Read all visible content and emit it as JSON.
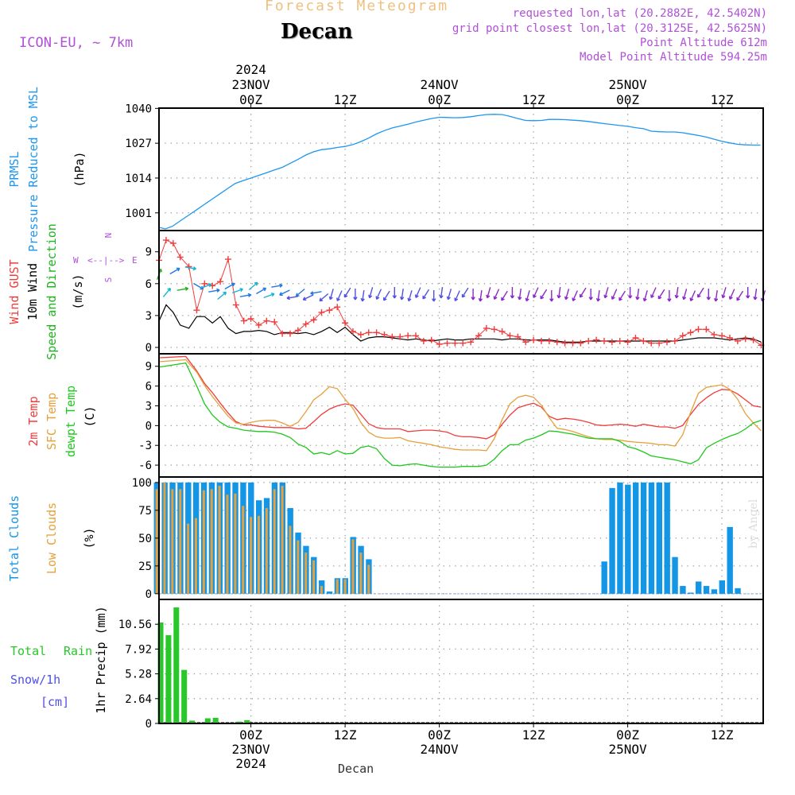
{
  "header": {
    "title_faded": "Forecast Meteogram",
    "station": "Decan",
    "model": "ICON-EU, ~ 7km",
    "requested": "requested lon,lat (20.2882E, 42.5402N)",
    "grid_point": "grid point closest lon,lat (20.3125E, 42.5625N)",
    "point_altitude": "Point Altitude 612m",
    "model_altitude": "Model Point Altitude 594.25m",
    "credit": "by Angel",
    "footer_station": "Decan"
  },
  "colors": {
    "pressure": "#1e96f0",
    "gust": "#f03c3c",
    "wind": "#000000",
    "dir_label": "#1eb41e",
    "temp2m": "#f03c3c",
    "sfc": "#e6a03c",
    "dewpt": "#1ec81e",
    "total_clouds": "#1496e6",
    "low_clouds": "#e6a03c",
    "rain": "#28c828",
    "snow": "#5050e6",
    "purple_text": "#b050d8",
    "faded_title": "#f0c080",
    "arrow_colors": [
      "#1eb41e",
      "#14b4d2",
      "#1e78e6",
      "#5050e6",
      "#8c28c8"
    ]
  },
  "time_axis": {
    "top_labels": [
      {
        "hour": 0,
        "lines": [
          "2024",
          "23NOV",
          "00Z"
        ]
      },
      {
        "hour": 12,
        "lines": [
          "12Z"
        ]
      },
      {
        "hour": 24,
        "lines": [
          "24NOV",
          "00Z"
        ]
      },
      {
        "hour": 36,
        "lines": [
          "12Z"
        ]
      },
      {
        "hour": 48,
        "lines": [
          "25NOV",
          "00Z"
        ]
      },
      {
        "hour": 60,
        "lines": [
          "12Z"
        ]
      }
    ],
    "bottom_labels": [
      {
        "hour": 0,
        "lines": [
          "00Z",
          "23NOV",
          "2024"
        ]
      },
      {
        "hour": 12,
        "lines": [
          "12Z"
        ]
      },
      {
        "hour": 24,
        "lines": [
          "00Z",
          "24NOV"
        ]
      },
      {
        "hour": 36,
        "lines": [
          "12Z"
        ]
      },
      {
        "hour": 48,
        "lines": [
          "00Z",
          "25NOV"
        ]
      },
      {
        "hour": 60,
        "lines": [
          "12Z"
        ]
      }
    ],
    "grid_hours": [
      0,
      12,
      24,
      36,
      48,
      60
    ]
  },
  "panels": {
    "pressure": {
      "labels": [
        "PRMSL",
        "Pressure Reduced to MSL"
      ],
      "unit": "(hPa)",
      "ticks": [
        "1040",
        "1027",
        "1014",
        "1001"
      ]
    },
    "wind": {
      "labels": [
        "Wind GUST",
        "10m Wind",
        "Speed and Direction"
      ],
      "unit": "(m/s)",
      "ticks": [
        "9",
        "6",
        "3",
        "0"
      ],
      "compass": {
        "n": "N",
        "s": "S",
        "w": "W",
        "e": "E",
        "h_arrow": "<--|-->",
        "v_top": "^",
        "v_bot": "v"
      }
    },
    "temp": {
      "labels": [
        "2m Temp",
        "SFC Temp",
        "dewpt Temp"
      ],
      "unit": "(C)",
      "ticks": [
        "9",
        "6",
        "3",
        "0",
        "-3",
        "-6"
      ]
    },
    "clouds": {
      "labels": [
        "Total Clouds",
        "Low Clouds"
      ],
      "unit": "(%)",
      "ticks": [
        "100",
        "75",
        "50",
        "25",
        "0"
      ]
    },
    "precip": {
      "labels": [
        "Total",
        "Rain",
        "Snow/1h",
        "[cm]"
      ],
      "unit": "1hr Precip (mm)",
      "ticks": [
        "10.56",
        "7.92",
        "5.28",
        "2.64",
        "0"
      ]
    }
  },
  "chart_data": [
    {
      "type": "line",
      "title": "PRMSL Pressure Reduced to MSL",
      "ylabel": "hPa",
      "ylim": [
        994.4,
        1040.1
      ],
      "x_hours": [
        -11.6,
        -10.9,
        -10,
        -9,
        -8,
        -7,
        -6,
        -5,
        -4,
        -3,
        -2,
        -1,
        0,
        1,
        2,
        3,
        4,
        5,
        6,
        7,
        8,
        9,
        10,
        11,
        12,
        13,
        14,
        15,
        16,
        17,
        18,
        19,
        20,
        21,
        22,
        23,
        24,
        25,
        26,
        27,
        28,
        29,
        30,
        31,
        32,
        33,
        34,
        35,
        36,
        37,
        38,
        39,
        40,
        41,
        42,
        43,
        44,
        45,
        46,
        47,
        48,
        49,
        50,
        51,
        52,
        53,
        54,
        55,
        56,
        57,
        58,
        59,
        60,
        61,
        62,
        63,
        64,
        64.9
      ],
      "values": [
        995.5,
        995,
        996,
        998,
        1000,
        1002,
        1004,
        1006,
        1008,
        1010,
        1012,
        1013,
        1014,
        1015,
        1016,
        1017,
        1018,
        1019.5,
        1021,
        1022.6,
        1023.8,
        1024.6,
        1024.9,
        1025.4,
        1025.8,
        1026.5,
        1027.6,
        1028.9,
        1030.5,
        1031.7,
        1032.7,
        1033.4,
        1034.1,
        1034.9,
        1035.6,
        1036.2,
        1036.7,
        1036.6,
        1036.5,
        1036.6,
        1036.9,
        1037.3,
        1037.7,
        1037.8,
        1037.7,
        1037,
        1036.2,
        1035.5,
        1035.4,
        1035.5,
        1035.9,
        1035.9,
        1035.8,
        1035.6,
        1035.4,
        1035.1,
        1034.7,
        1034.3,
        1034,
        1033.6,
        1033.3,
        1032.8,
        1032.4,
        1031.5,
        1031.3,
        1031.2,
        1031.2,
        1030.9,
        1030.4,
        1029.9,
        1029.3,
        1028.5,
        1027.7,
        1027.1,
        1026.6,
        1026.4,
        1026.3,
        1026.3
      ]
    },
    {
      "type": "line",
      "title": "Wind GUST / 10m Wind Speed and Direction",
      "ylabel": "m/s",
      "ylim": [
        -0.6,
        11
      ],
      "series": [
        {
          "name": "Wind GUST",
          "x_hours": [
            -11.7,
            -10.8,
            -9.9,
            -9,
            -7.9,
            -6.9,
            -5.9,
            -4.9,
            -3.9,
            -2.9,
            -1.9,
            -0.9,
            0,
            1,
            2,
            3,
            4,
            5,
            6,
            7,
            8,
            9,
            10,
            11,
            12,
            13,
            14,
            15,
            16,
            17,
            18,
            19,
            20,
            21,
            22,
            23,
            24,
            25,
            26,
            27,
            28,
            29,
            30,
            31,
            32,
            33,
            34,
            35,
            36,
            37,
            38,
            39,
            40,
            41,
            42,
            43,
            44,
            45,
            46,
            47,
            48,
            49,
            50,
            51,
            52,
            53,
            54,
            55,
            56,
            57,
            58,
            59,
            60,
            61,
            62,
            63,
            64,
            65
          ],
          "values": [
            8.2,
            10.1,
            9.8,
            8.5,
            7.6,
            3.5,
            6,
            5.8,
            6.2,
            8.3,
            4,
            2.5,
            2.7,
            2.1,
            2.5,
            2.4,
            1.3,
            1.3,
            1.6,
            2.2,
            2.6,
            3.3,
            3.5,
            3.8,
            2.3,
            1.5,
            1.2,
            1.4,
            1.4,
            1.2,
            1,
            1,
            1.1,
            1.1,
            0.6,
            0.7,
            0.3,
            0.4,
            0.4,
            0.4,
            0.5,
            1.1,
            1.8,
            1.7,
            1.5,
            1.1,
            1,
            0.5,
            0.7,
            0.6,
            0.6,
            0.5,
            0.4,
            0.4,
            0.4,
            0.6,
            0.7,
            0.6,
            0.5,
            0.6,
            0.5,
            0.9,
            0.6,
            0.4,
            0.4,
            0.5,
            0.6,
            1.1,
            1.4,
            1.7,
            1.7,
            1.2,
            1.1,
            0.9,
            0.6,
            0.8,
            0.7,
            0.2
          ]
        },
        {
          "name": "10m Wind",
          "x_hours": [
            -11.7,
            -10.8,
            -9.9,
            -9,
            -7.9,
            -6.9,
            -5.9,
            -4.9,
            -3.9,
            -2.9,
            -1.9,
            -0.9,
            0,
            1,
            2,
            3,
            4,
            5,
            6,
            7,
            8,
            9,
            10,
            11,
            12,
            13,
            14,
            15,
            16,
            17,
            18,
            19,
            20,
            21,
            22,
            23,
            24,
            25,
            26,
            27,
            28,
            29,
            30,
            31,
            32,
            33,
            34,
            35,
            36,
            37,
            38,
            39,
            40,
            41,
            42,
            43,
            44,
            45,
            46,
            47,
            48,
            49,
            50,
            51,
            52,
            53,
            54,
            55,
            56,
            57,
            58,
            59,
            60,
            61,
            62,
            63,
            64,
            65
          ],
          "values": [
            2.5,
            4,
            3.3,
            2.1,
            1.8,
            2.9,
            2.9,
            2.3,
            2.9,
            1.8,
            1.3,
            1.5,
            1.5,
            1.6,
            1.5,
            1.2,
            1.4,
            1.4,
            1.3,
            1.4,
            1.2,
            1.5,
            1.9,
            1.4,
            1.9,
            1.2,
            0.6,
            0.9,
            1,
            1,
            0.9,
            0.8,
            0.7,
            0.8,
            0.7,
            0.6,
            0.7,
            0.8,
            0.7,
            0.7,
            0.8,
            0.8,
            0.8,
            0.8,
            0.7,
            0.8,
            0.8,
            0.7,
            0.7,
            0.7,
            0.7,
            0.6,
            0.5,
            0.5,
            0.5,
            0.6,
            0.6,
            0.6,
            0.6,
            0.6,
            0.6,
            0.6,
            0.6,
            0.6,
            0.6,
            0.6,
            0.6,
            0.7,
            0.8,
            0.9,
            0.9,
            0.9,
            0.8,
            0.7,
            0.8,
            0.9,
            0.8,
            0.5
          ]
        }
      ]
    },
    {
      "type": "line",
      "title": "2m Temp / SFC Temp / dewpt Temp",
      "ylabel": "C",
      "ylim": [
        -7.8,
        10.9
      ],
      "x_hours": [
        -11.6,
        -8.3,
        -6.9,
        -5.9,
        -4.9,
        -3.9,
        -2.9,
        -1.9,
        -0.9,
        0,
        1,
        2,
        3,
        4,
        5,
        6,
        7,
        8,
        9,
        10,
        11,
        12,
        13,
        14,
        15,
        16,
        17,
        18,
        19,
        20,
        21,
        22,
        23,
        24,
        25,
        26,
        27,
        28,
        29,
        30,
        31,
        32,
        33,
        34,
        35,
        36,
        37,
        38,
        39,
        40,
        41,
        42,
        43,
        44,
        45,
        46,
        47,
        48,
        49,
        50,
        51,
        52,
        53,
        54,
        55,
        56,
        57,
        58,
        59,
        60,
        61,
        62,
        63,
        64,
        65
      ],
      "series": [
        {
          "name": "2m Temp",
          "values": [
            10.3,
            10.5,
            8.3,
            6.4,
            5,
            3.4,
            1.9,
            0.6,
            0.1,
            0.1,
            -0.1,
            -0.2,
            -0.3,
            -0.3,
            -0.3,
            -0.5,
            -0.4,
            0.6,
            1.7,
            2.5,
            3,
            3.3,
            3.1,
            1.7,
            0.3,
            -0.3,
            -0.5,
            -0.5,
            -0.5,
            -0.9,
            -0.8,
            -0.7,
            -0.7,
            -0.8,
            -1,
            -1.5,
            -1.7,
            -1.7,
            -1.8,
            -2,
            -1.4,
            0.2,
            1.6,
            2.7,
            3.1,
            3.4,
            2.8,
            1.4,
            0.9,
            1.1,
            1,
            0.8,
            0.5,
            0.1,
            0,
            0.1,
            0.2,
            0.1,
            -0.1,
            0.2,
            0,
            -0.2,
            -0.2,
            -0.4,
            0,
            1.7,
            3.2,
            4.2,
            5,
            5.5,
            5.4,
            4.8,
            3.9,
            3,
            2.8
          ]
        },
        {
          "name": "SFC Temp",
          "values": [
            9.7,
            10,
            8.1,
            6.1,
            4.4,
            2.9,
            1.4,
            0.4,
            0.2,
            0.5,
            0.7,
            0.8,
            0.8,
            0.4,
            -0.1,
            0.5,
            2.1,
            3.9,
            4.8,
            5.9,
            5.6,
            4,
            2.6,
            0.5,
            -1,
            -1.7,
            -1.9,
            -1.9,
            -1.8,
            -2.3,
            -2.5,
            -2.7,
            -2.9,
            -3.2,
            -3.4,
            -3.6,
            -3.7,
            -3.7,
            -3.7,
            -3.8,
            -2,
            0.9,
            3.3,
            4.3,
            4.6,
            4.3,
            3.1,
            1.2,
            -0.4,
            -0.6,
            -0.9,
            -1.3,
            -1.7,
            -2,
            -2.1,
            -2.1,
            -2.2,
            -2.4,
            -2.5,
            -2.6,
            -2.7,
            -2.9,
            -2.9,
            -3.1,
            -1.4,
            2,
            4.9,
            5.8,
            6,
            6.2,
            5.5,
            4,
            1.8,
            0.4,
            -0.8
          ]
        },
        {
          "name": "dewpt Temp",
          "values": [
            8.9,
            9.5,
            6,
            3.3,
            1.6,
            0.5,
            -0.2,
            -0.4,
            -0.7,
            -0.8,
            -0.9,
            -0.9,
            -1,
            -1.3,
            -1.8,
            -2.8,
            -3.3,
            -4.3,
            -4.1,
            -4.4,
            -3.8,
            -4.3,
            -4.2,
            -3.3,
            -3.1,
            -3.5,
            -5,
            -6,
            -6.1,
            -5.9,
            -5.8,
            -6,
            -6.2,
            -6.3,
            -6.3,
            -6.3,
            -6.2,
            -6.2,
            -6.2,
            -6,
            -5.1,
            -3.8,
            -2.9,
            -2.9,
            -2.2,
            -1.9,
            -1.4,
            -0.8,
            -0.9,
            -1.1,
            -1.3,
            -1.6,
            -1.9,
            -2,
            -2,
            -2,
            -2.4,
            -3.2,
            -3.5,
            -4,
            -4.6,
            -4.8,
            -5,
            -5.2,
            -5.5,
            -5.8,
            -5.2,
            -3.4,
            -2.7,
            -2.1,
            -1.6,
            -1.2,
            -0.5,
            0.4,
            0.8
          ]
        }
      ]
    },
    {
      "type": "bar",
      "title": "Total Clouds / Low Clouds",
      "ylabel": "%",
      "ylim": [
        -5.1,
        104.9
      ],
      "x_hours": [
        -12,
        -11,
        -10,
        -9,
        -8,
        -7,
        -6,
        -5,
        -4,
        -3,
        -2,
        -1,
        0,
        1,
        2,
        3,
        4,
        5,
        6,
        7,
        8,
        9,
        10,
        11,
        12,
        13,
        14,
        15,
        45,
        46,
        47,
        48,
        49,
        50,
        51,
        52,
        53,
        54,
        55,
        56,
        57,
        58,
        59,
        60,
        61,
        62
      ],
      "series": [
        {
          "name": "Total Clouds",
          "values": [
            100,
            100,
            100,
            100,
            100,
            100,
            100,
            100,
            100,
            100,
            100,
            100,
            100,
            84,
            86,
            100,
            100,
            77,
            55,
            43,
            33,
            12,
            2,
            14,
            14,
            51,
            43,
            31,
            29,
            95,
            100,
            98,
            100,
            100,
            100,
            100,
            100,
            33,
            7,
            1,
            11,
            7,
            4,
            12,
            60,
            5
          ]
        },
        {
          "name": "Low Clouds",
          "values": [
            94,
            100,
            94,
            94,
            63,
            68,
            93,
            94,
            97,
            89,
            90,
            79,
            69,
            70,
            77,
            94,
            97,
            61,
            48,
            37,
            30,
            7,
            0,
            13,
            13,
            49,
            37,
            26,
            0,
            0,
            0,
            0,
            0,
            0,
            0,
            0,
            0,
            0,
            0,
            0,
            0,
            0,
            0,
            0,
            0,
            0
          ]
        }
      ]
    },
    {
      "type": "bar",
      "title": "Total Rain / Snow/1h",
      "ylabel": "1hr Precip (mm)",
      "ylim": [
        0,
        13.2
      ],
      "x_hours": [
        -11.5,
        -10.5,
        -9.5,
        -8.5,
        -7.5,
        -5.5,
        -4.5,
        -1.5,
        -0.5
      ],
      "series": [
        {
          "name": "Total Rain",
          "values": [
            10.75,
            9.4,
            12.35,
            5.7,
            0.3,
            0.55,
            0.6,
            0.2,
            0.35
          ]
        }
      ]
    }
  ]
}
